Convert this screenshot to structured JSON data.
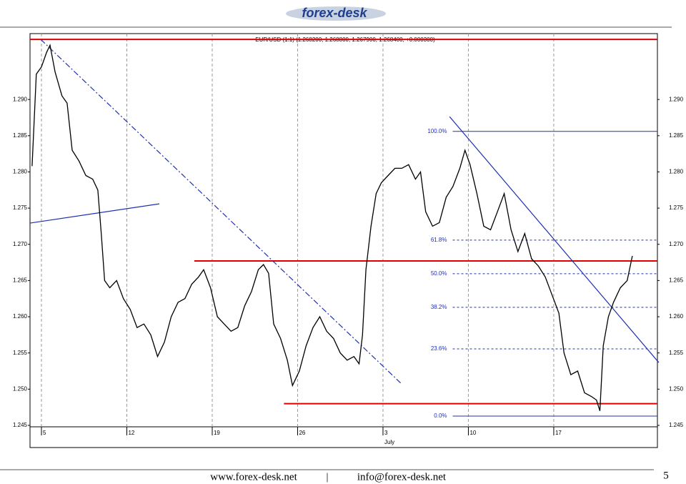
{
  "header": {
    "logo": "forex-desk"
  },
  "chart_data": {
    "type": "line",
    "title": "EUR/USD (1:1) (1.268200, 1.268800, 1.267900, 1.268400, +0.000300)",
    "x": [
      -0.55,
      -0.3,
      0,
      0.3,
      0.5,
      0.8,
      1.2,
      1.5,
      1.8,
      2.2,
      2.6,
      3.0,
      3.3,
      3.5,
      3.7,
      4.0,
      4.4,
      4.8,
      5.2,
      5.6,
      6.0,
      6.4,
      6.8,
      7.2,
      7.6,
      8.0,
      8.4,
      8.8,
      9.2,
      9.5,
      9.9,
      10.3,
      10.7,
      11.1,
      11.5,
      11.9,
      12.3,
      12.7,
      13.0,
      13.3,
      13.6,
      14.0,
      14.4,
      14.7,
      15.1,
      15.5,
      15.9,
      16.3,
      16.7,
      17.1,
      17.5,
      17.9,
      18.3,
      18.6,
      18.8,
      19.0,
      19.3,
      19.6,
      19.9,
      20.3,
      20.7,
      21.1,
      21.5,
      21.9,
      22.2,
      22.5,
      22.9,
      23.3,
      23.7,
      24.1,
      24.5,
      24.8,
      25.1,
      25.5,
      25.9,
      26.3,
      26.7,
      27.1,
      27.5,
      27.9,
      28.3,
      28.7,
      29.1,
      29.5,
      29.9,
      30.3,
      30.6,
      31.0,
      31.4,
      31.8,
      32.2,
      32.5,
      32.7,
      32.9,
      33.2,
      33.5,
      33.9,
      34.3,
      34.6
    ],
    "series": [
      {
        "color": "#000000",
        "values": [
          1.2808,
          1.2935,
          1.2945,
          1.2965,
          1.2975,
          1.2938,
          1.2905,
          1.2895,
          1.283,
          1.2815,
          1.2795,
          1.279,
          1.2775,
          1.2715,
          1.265,
          1.264,
          1.265,
          1.2625,
          1.261,
          1.2585,
          1.259,
          1.2575,
          1.2545,
          1.2565,
          1.26,
          1.262,
          1.2625,
          1.2645,
          1.2655,
          1.2665,
          1.264,
          1.26,
          1.259,
          1.258,
          1.2585,
          1.2615,
          1.2635,
          1.2665,
          1.2672,
          1.266,
          1.259,
          1.257,
          1.254,
          1.2505,
          1.2525,
          1.256,
          1.2585,
          1.26,
          1.258,
          1.257,
          1.255,
          1.254,
          1.2545,
          1.2535,
          1.2575,
          1.2665,
          1.2725,
          1.277,
          1.2785,
          1.2795,
          1.2805,
          1.2805,
          1.281,
          1.279,
          1.28,
          1.2745,
          1.2725,
          1.273,
          1.2765,
          1.278,
          1.2805,
          1.283,
          1.281,
          1.277,
          1.2725,
          1.272,
          1.2745,
          1.277,
          1.272,
          1.269,
          1.2715,
          1.268,
          1.267,
          1.2655,
          1.263,
          1.2605,
          1.255,
          1.252,
          1.2525,
          1.2495,
          1.249,
          1.2485,
          1.247,
          1.256,
          1.26,
          1.262,
          1.264,
          1.265,
          1.2684
        ]
      }
    ],
    "xlim": [
      -0.67,
      36.07
    ],
    "xticks": [
      {
        "value": 0,
        "label": "5"
      },
      {
        "value": 5,
        "label": "12"
      },
      {
        "value": 10,
        "label": "19"
      },
      {
        "value": 15,
        "label": "26"
      },
      {
        "value": 20,
        "label": "3"
      },
      {
        "value": 25,
        "label": "10"
      },
      {
        "value": 30,
        "label": "17"
      }
    ],
    "month_label": "July",
    "ylim": [
      1.2448,
      1.2991
    ],
    "yticks": [
      1.245,
      {
        "value": 1.25,
        "label": "1.250"
      },
      1.255,
      {
        "value": 1.26,
        "label": "1.260"
      },
      1.265,
      {
        "value": 1.27,
        "label": "1.270"
      },
      1.275,
      {
        "value": 1.28,
        "label": "1.280"
      },
      1.285,
      {
        "value": 1.29,
        "label": "1.290"
      }
    ],
    "levels": [
      {
        "value": 1.2983,
        "color": "#e00000"
      },
      {
        "value": 1.2677,
        "from": 8.95,
        "color": "#e00000"
      },
      {
        "value": 1.248,
        "from": 14.2,
        "color": "#e00000"
      }
    ],
    "trendlines": [
      {
        "x": [
          -0.04,
          21.09
        ],
        "y": [
          1.29829,
          1.25072
        ],
        "color": "#2030b0",
        "dash": "8 3 2 3"
      },
      {
        "x": [
          -0.67,
          6.9
        ],
        "y": [
          1.27293,
          1.27559
        ],
        "color": "#2030b0"
      },
      {
        "x": [
          23.9,
          36.15
        ],
        "y": [
          1.28763,
          1.25368
        ],
        "color": "#2030b0"
      }
    ],
    "fibonacci": {
      "from": 24.5,
      "color": "#2030b0",
      "levels": [
        {
          "label": "100.0%",
          "value": 1.2856,
          "dashed": false
        },
        {
          "label": "61.8%",
          "value": 1.27058,
          "dashed": true
        },
        {
          "label": "50.0%",
          "value": 1.26594,
          "dashed": true
        },
        {
          "label": "38.2%",
          "value": 1.2613,
          "dashed": true
        },
        {
          "label": "23.6%",
          "value": 1.25556,
          "dashed": true
        },
        {
          "label": "0.0%",
          "value": 1.24628,
          "dashed": false
        }
      ]
    },
    "grid": true
  },
  "footer": {
    "website": "www.forex-desk.net",
    "separator": "|",
    "email": "info@forex-desk.net",
    "page": "5"
  }
}
